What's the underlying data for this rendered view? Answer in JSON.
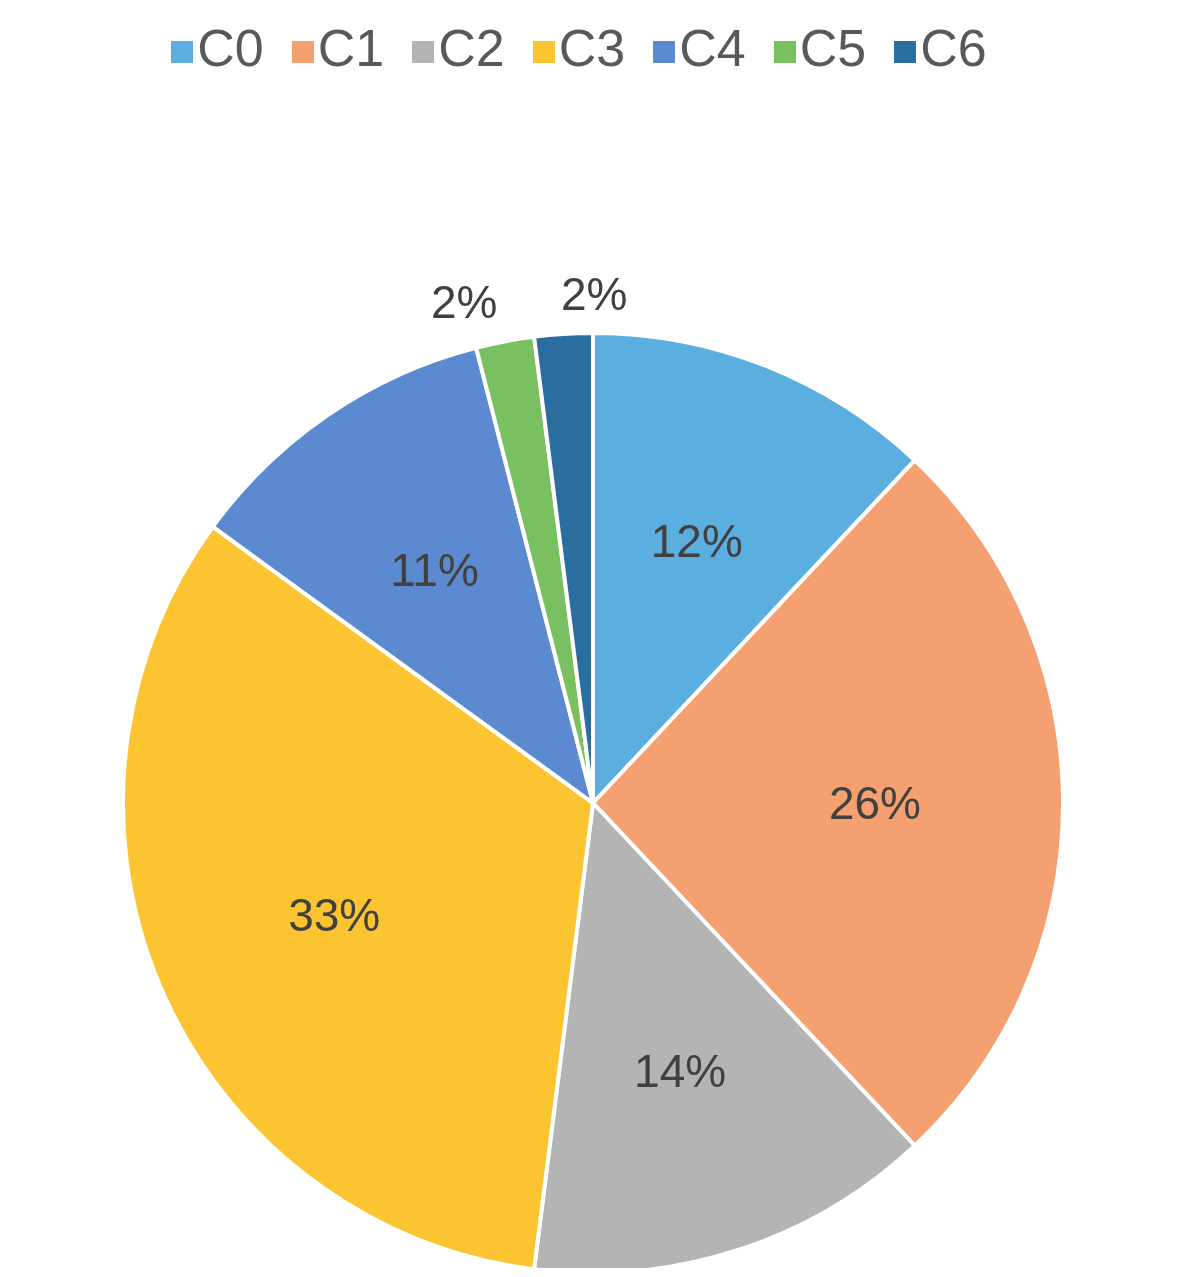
{
  "chart_data": {
    "type": "pie",
    "categories": [
      "C0",
      "C1",
      "C2",
      "C3",
      "C4",
      "C5",
      "C6"
    ],
    "values": [
      12,
      26,
      14,
      33,
      11,
      2,
      2
    ],
    "value_labels": [
      "12%",
      "26%",
      "14%",
      "33%",
      "11%",
      "2%",
      "2%"
    ],
    "colors": [
      "#5aaee0",
      "#f4a070",
      "#b4b4b4",
      "#fcc430",
      "#5b8ad0",
      "#78c060",
      "#2a6ea0"
    ],
    "legend": "top"
  }
}
